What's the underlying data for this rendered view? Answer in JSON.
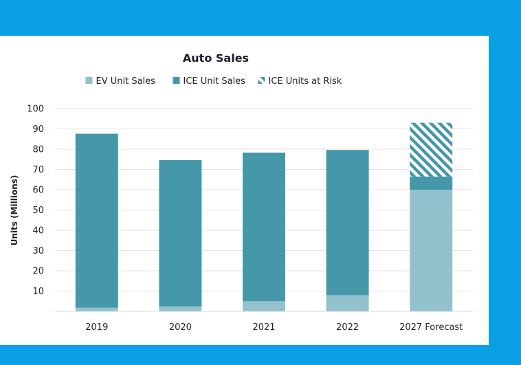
{
  "chart_data": {
    "type": "bar",
    "stacked": true,
    "title": "Auto Sales",
    "ylabel": "Units (Millions)",
    "xlabel": "",
    "ylim": [
      0,
      100
    ],
    "yticks": [
      10,
      20,
      30,
      40,
      50,
      60,
      70,
      80,
      90,
      100
    ],
    "categories": [
      "2019",
      "2020",
      "2021",
      "2022",
      "2027 Forecast"
    ],
    "series": [
      {
        "name": "EV Unit Sales",
        "color": "#93c1cc",
        "pattern": "solid",
        "values": [
          1.8,
          2.5,
          5,
          8,
          60
        ]
      },
      {
        "name": "ICE Unit Sales",
        "color": "#4597aa",
        "pattern": "solid",
        "values": [
          85.8,
          72.1,
          73.3,
          71.6,
          6.5
        ]
      },
      {
        "name": "ICE Units at Risk",
        "color": "#4597aa",
        "pattern": "hatch",
        "values": [
          0,
          0,
          0,
          0,
          26.5
        ]
      }
    ],
    "legend_position": "top",
    "grid": true
  }
}
